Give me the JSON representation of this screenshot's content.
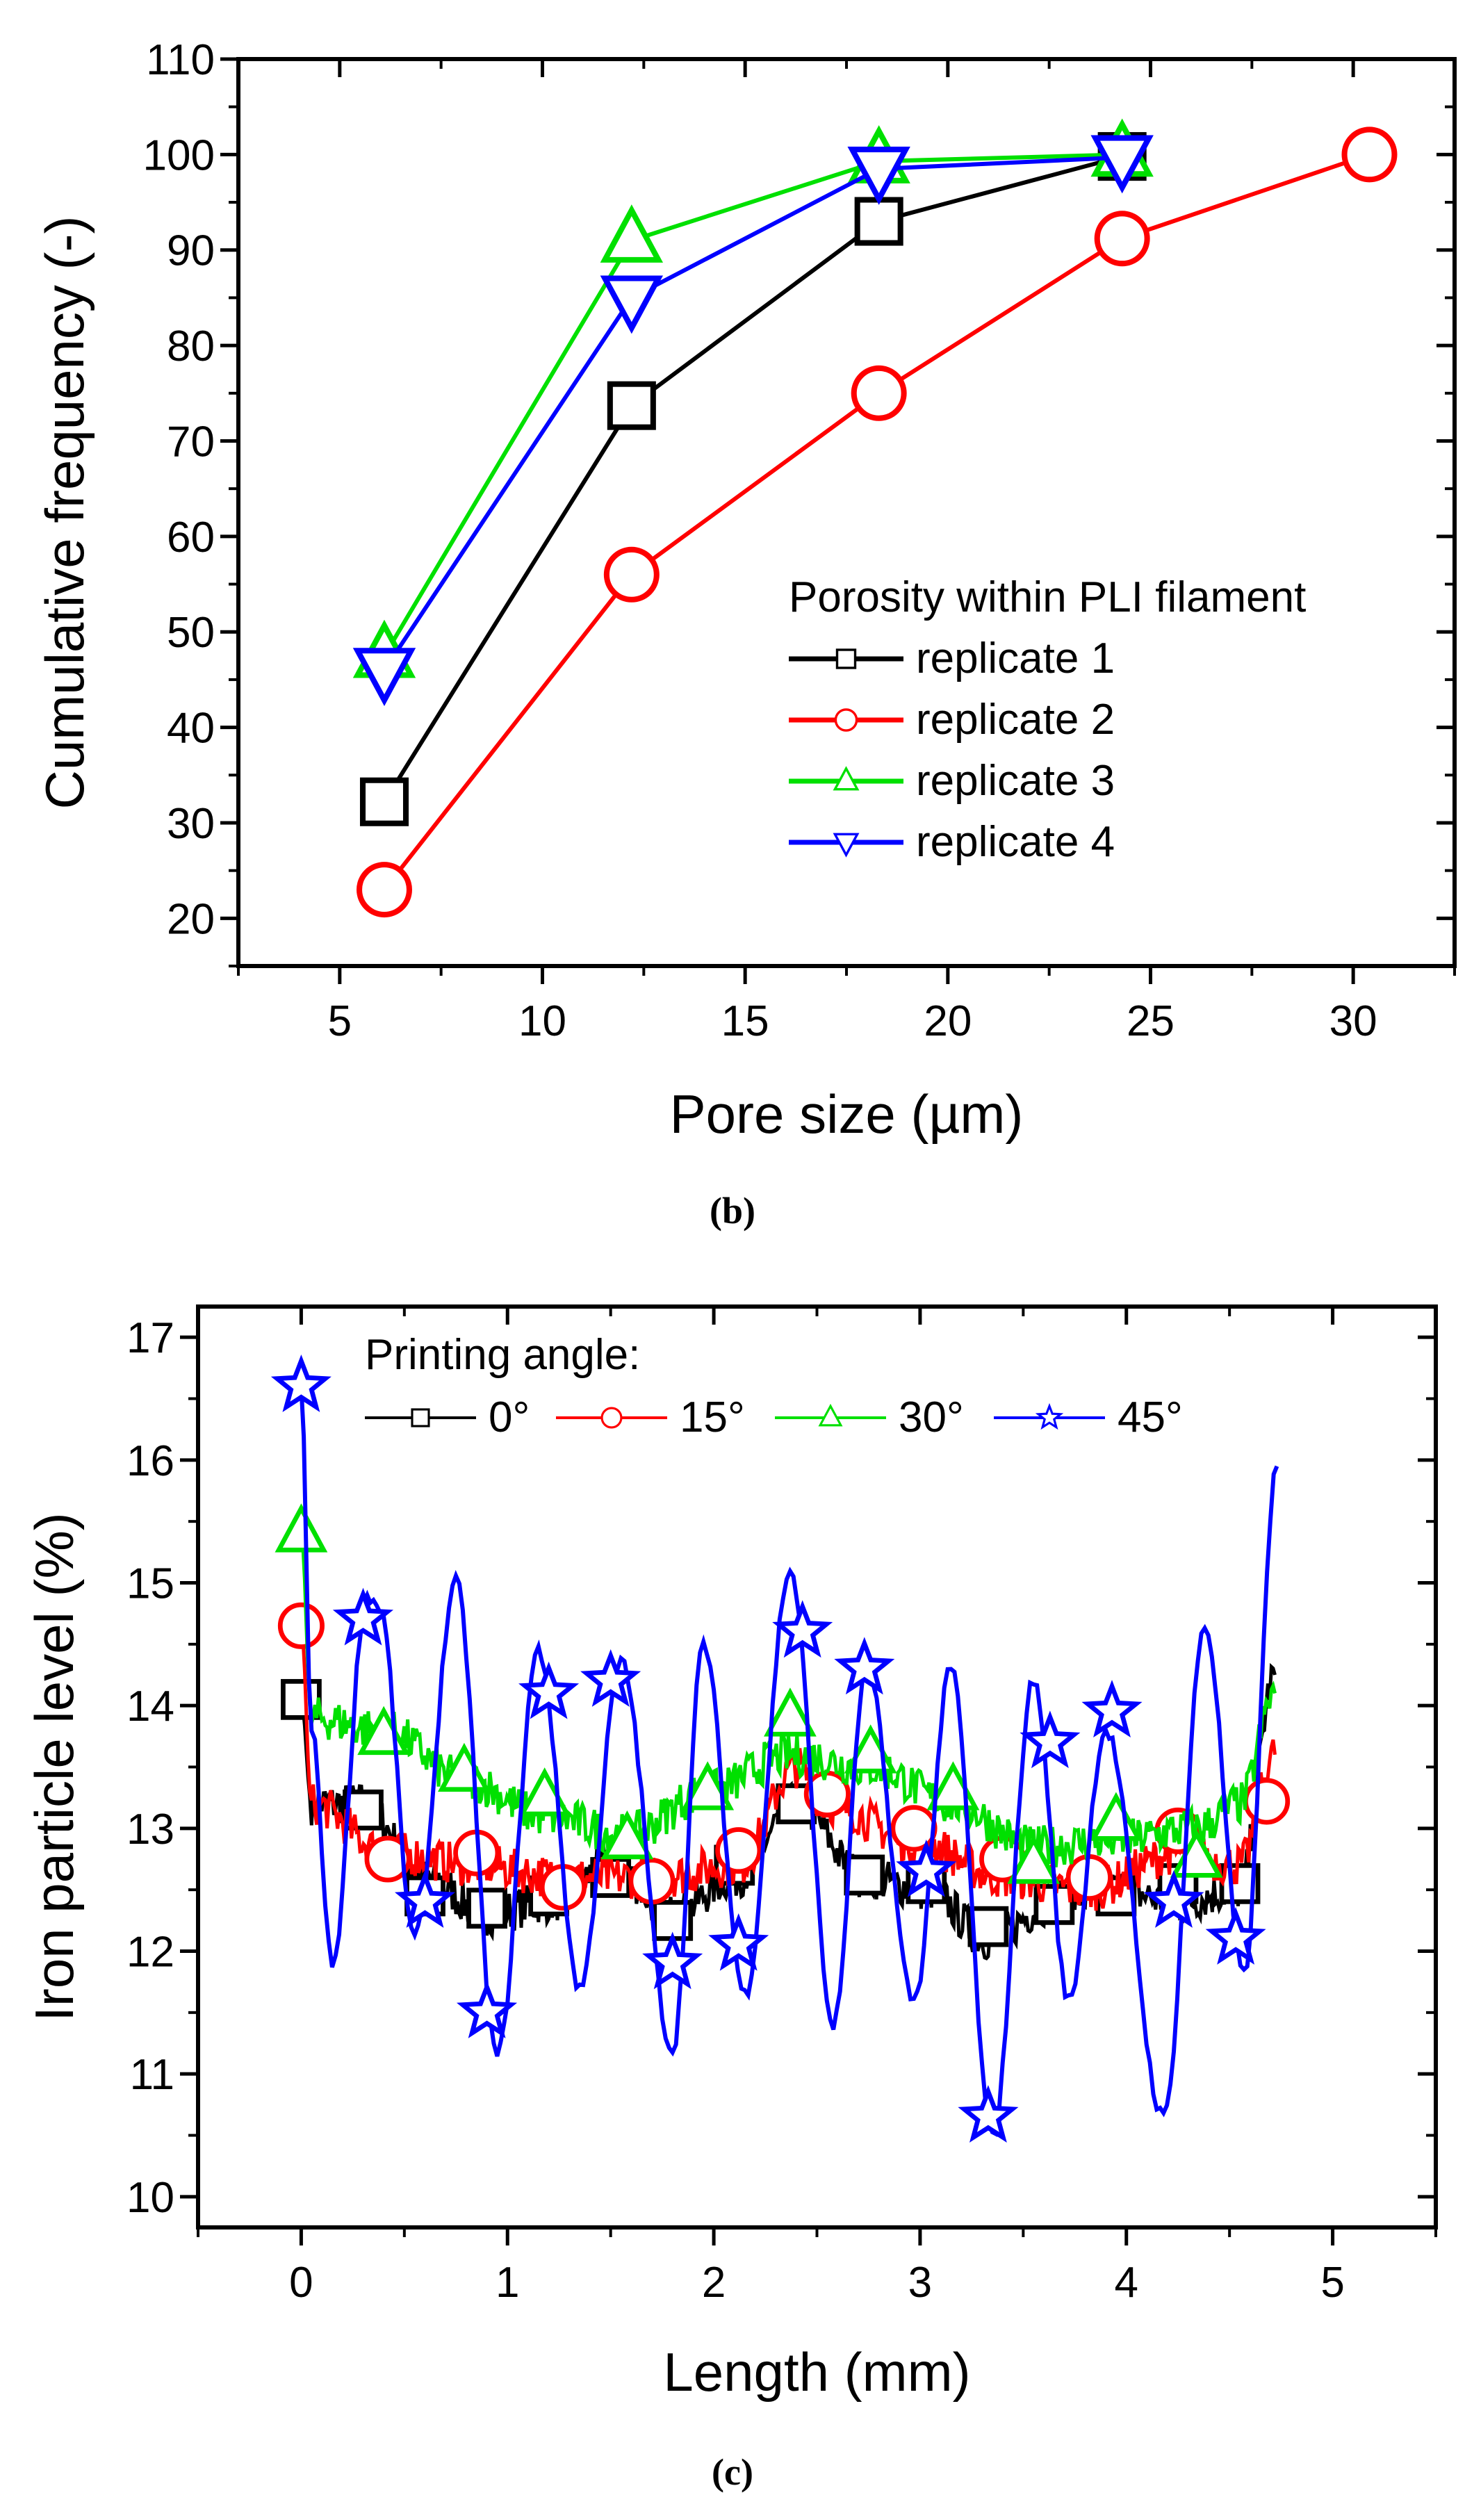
{
  "chart_data": [
    {
      "id": "b",
      "type": "line",
      "caption": "(b)",
      "xlabel": "Pore size (µm)",
      "ylabel": "Cumulative frequency (-)",
      "xlim": [
        2.5,
        32.5
      ],
      "ylim": [
        15,
        110
      ],
      "xticks": [
        5,
        10,
        15,
        20,
        25,
        30
      ],
      "yticks": [
        20,
        30,
        40,
        50,
        60,
        70,
        80,
        90,
        100,
        110
      ],
      "legend_title": "Porosity within PLI filament",
      "legend_position": "center-right",
      "series": [
        {
          "name": "replicate 1",
          "color": "#000000",
          "marker": "square",
          "x": [
            6.1,
            12.2,
            18.3,
            24.3
          ],
          "y": [
            32.2,
            73.7,
            93.0,
            99.8
          ]
        },
        {
          "name": "replicate 2",
          "color": "#ff0000",
          "marker": "circle",
          "x": [
            6.1,
            12.2,
            18.3,
            24.3,
            30.4
          ],
          "y": [
            23.0,
            56.0,
            75.0,
            91.2,
            100.0
          ]
        },
        {
          "name": "replicate 3",
          "color": "#00e000",
          "marker": "triangle-up",
          "x": [
            6.1,
            12.2,
            18.3,
            24.3
          ],
          "y": [
            47.5,
            91.0,
            99.3,
            100.0
          ]
        },
        {
          "name": "replicate 4",
          "color": "#0000ff",
          "marker": "triangle-down",
          "x": [
            6.1,
            12.2,
            18.3,
            24.3
          ],
          "y": [
            46.0,
            85.0,
            98.5,
            99.7
          ]
        }
      ]
    },
    {
      "id": "c",
      "type": "line",
      "caption": "(c)",
      "xlabel": "Length (mm)",
      "ylabel": "Iron particle level (%)",
      "xlim": [
        -0.5,
        5.5
      ],
      "ylim": [
        9.75,
        17.25
      ],
      "xticks": [
        0,
        1,
        2,
        3,
        4,
        5
      ],
      "yticks": [
        10,
        11,
        12,
        13,
        14,
        15,
        16,
        17
      ],
      "legend_title": "Printing angle:",
      "legend_position": "top-left",
      "series": [
        {
          "name": "0°",
          "color": "#000000",
          "marker": "square",
          "x": [
            0,
            0.3,
            0.6,
            0.9,
            1.2,
            1.5,
            1.8,
            2.1,
            2.4,
            2.73,
            3.03,
            3.33,
            3.65,
            3.95,
            4.25,
            4.55
          ],
          "y": [
            14.05,
            13.15,
            12.45,
            12.35,
            12.45,
            12.6,
            12.25,
            12.7,
            13.2,
            12.62,
            12.55,
            12.2,
            12.38,
            12.45,
            12.55,
            12.55
          ],
          "line_x": [
            0,
            0.05,
            0.3,
            0.6,
            0.9,
            1.2,
            1.5,
            1.8,
            2.1,
            2.4,
            2.73,
            3.03,
            3.33,
            3.65,
            3.95,
            4.25,
            4.55,
            4.72
          ],
          "line_y": [
            14.05,
            13.2,
            13.2,
            12.6,
            12.3,
            12.4,
            12.7,
            12.3,
            12.6,
            13.2,
            12.6,
            12.5,
            12.1,
            12.4,
            12.5,
            12.4,
            12.5,
            14.25
          ]
        },
        {
          "name": "15°",
          "color": "#ff0000",
          "marker": "circle",
          "x": [
            0,
            0.42,
            0.85,
            1.27,
            1.7,
            2.12,
            2.55,
            2.97,
            3.4,
            3.82,
            4.25,
            4.68
          ],
          "y": [
            14.65,
            12.75,
            12.8,
            12.52,
            12.57,
            12.82,
            13.28,
            13.0,
            12.75,
            12.6,
            12.98,
            13.22
          ],
          "line_x": [
            0,
            0.05,
            0.42,
            0.85,
            1.27,
            1.7,
            2.12,
            2.4,
            2.55,
            2.97,
            3.4,
            3.82,
            4.25,
            4.55,
            4.72
          ],
          "line_y": [
            14.65,
            13.2,
            12.8,
            12.7,
            12.6,
            12.6,
            12.7,
            13.5,
            13.2,
            12.9,
            12.6,
            12.5,
            12.8,
            12.7,
            13.6
          ]
        },
        {
          "name": "30°",
          "color": "#00e000",
          "marker": "triangle-up",
          "x": [
            0,
            0.4,
            0.79,
            1.18,
            1.58,
            1.97,
            2.37,
            2.76,
            3.16,
            3.55,
            3.95,
            4.34
          ],
          "y": [
            15.4,
            13.75,
            13.45,
            13.25,
            12.9,
            13.3,
            13.9,
            13.6,
            13.3,
            12.7,
            13.05,
            12.75
          ],
          "line_x": [
            0,
            0.05,
            0.4,
            0.79,
            1.18,
            1.58,
            1.97,
            2.37,
            2.76,
            3.16,
            3.55,
            3.95,
            4.34,
            4.55,
            4.72
          ],
          "line_y": [
            15.4,
            13.9,
            13.8,
            13.4,
            13.1,
            12.95,
            13.3,
            13.6,
            13.5,
            13.2,
            12.85,
            12.9,
            13.0,
            13.2,
            14.1
          ]
        },
        {
          "name": "45°",
          "color": "#0000ff",
          "marker": "star",
          "x": [
            0,
            0.3,
            0.6,
            0.9,
            1.2,
            1.5,
            1.8,
            2.12,
            2.43,
            2.73,
            3.03,
            3.33,
            3.63,
            3.93,
            4.23,
            4.53
          ],
          "y": [
            16.6,
            14.7,
            12.4,
            11.5,
            14.1,
            14.2,
            11.9,
            12.05,
            14.6,
            14.3,
            12.65,
            10.65,
            13.7,
            13.95,
            12.4,
            12.1
          ],
          "line_x": [
            0,
            0.05,
            0.15,
            0.32,
            0.38,
            0.55,
            0.75,
            0.95,
            1.15,
            1.35,
            1.55,
            1.8,
            1.95,
            2.15,
            2.37,
            2.58,
            2.74,
            2.97,
            3.15,
            3.35,
            3.55,
            3.72,
            3.9,
            4.18,
            4.38,
            4.57,
            4.73
          ],
          "line_y": [
            16.6,
            13.8,
            11.9,
            14.9,
            14.8,
            12.1,
            15.0,
            11.15,
            14.45,
            11.7,
            14.35,
            11.2,
            14.5,
            11.65,
            15.1,
            11.4,
            14.3,
            11.6,
            14.3,
            10.5,
            14.2,
            11.6,
            13.8,
            10.65,
            14.65,
            11.8,
            15.95
          ]
        }
      ]
    }
  ]
}
